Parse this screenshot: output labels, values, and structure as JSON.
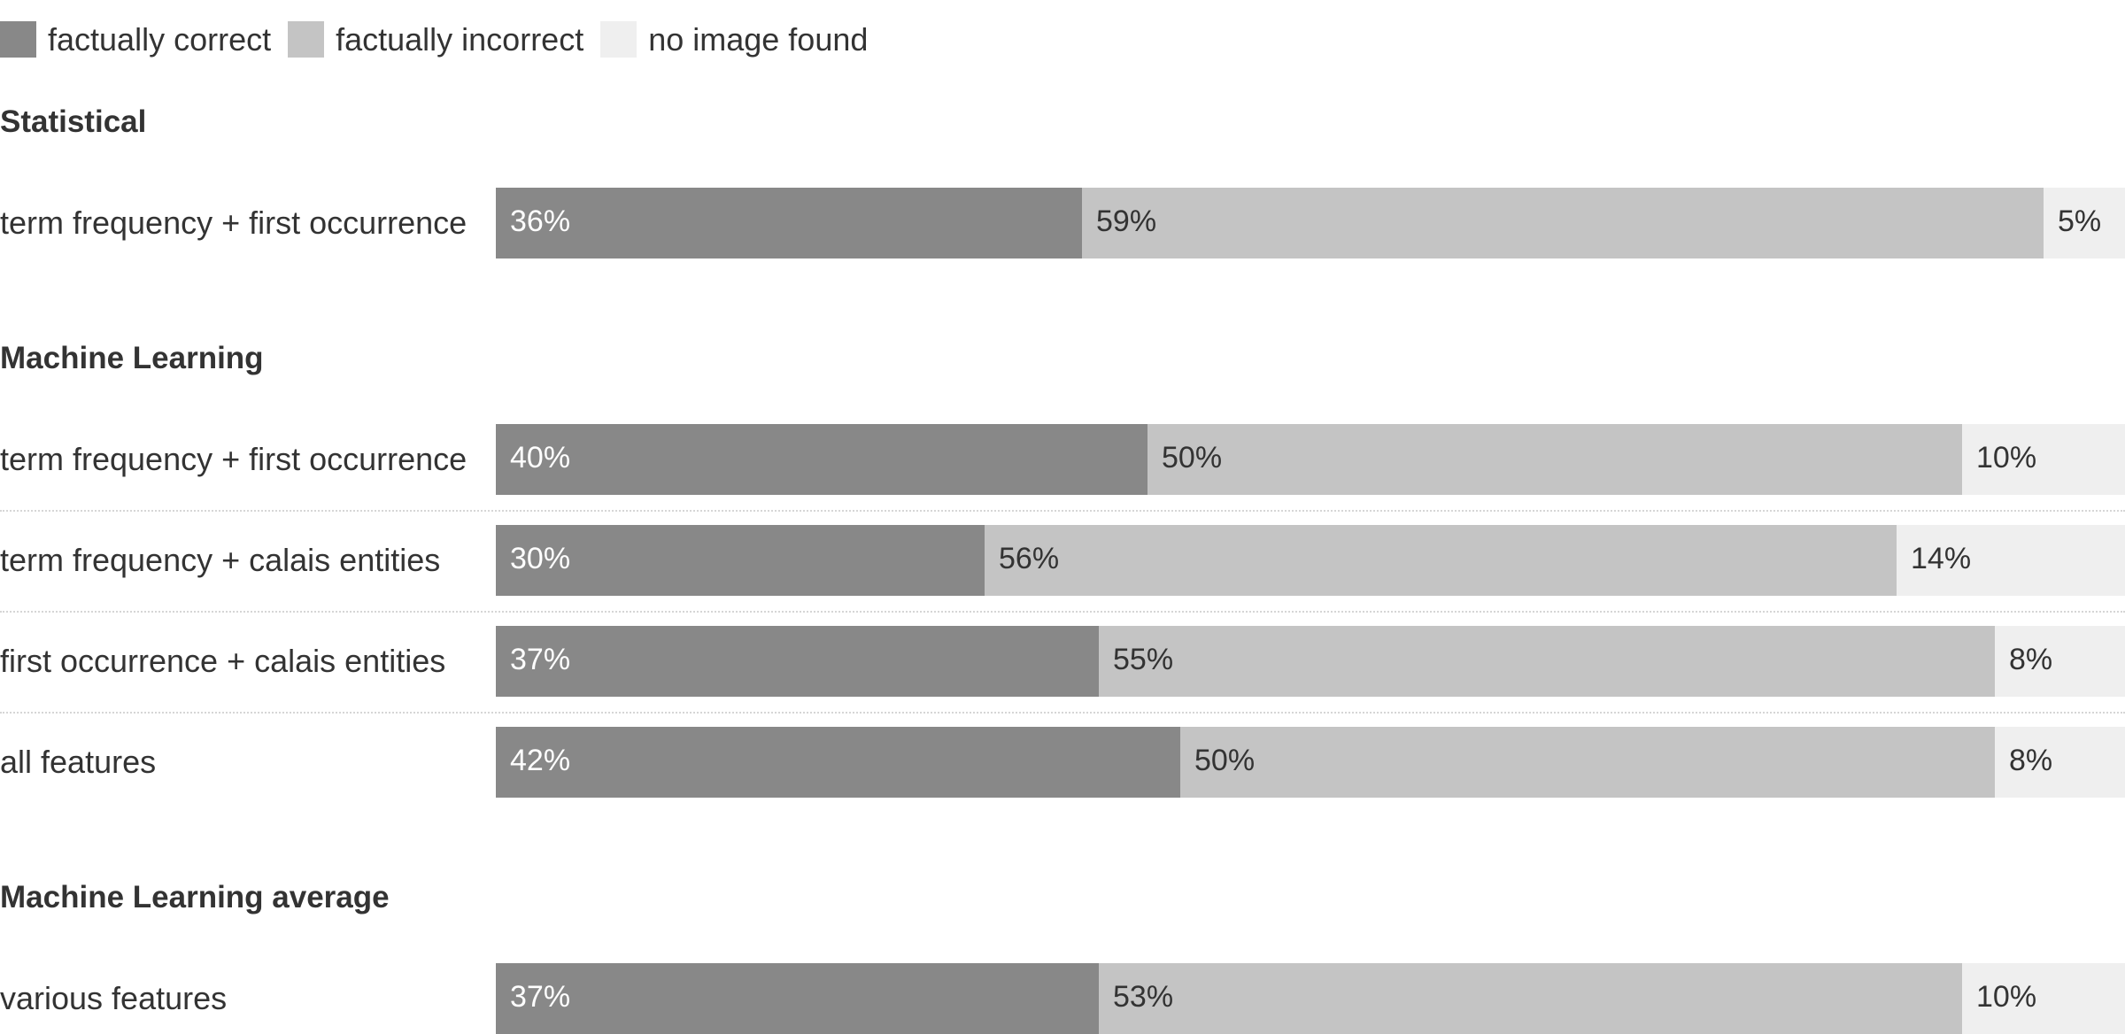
{
  "colors": {
    "correct": "#888888",
    "incorrect": "#c4c4c4",
    "no_image": "#efefef",
    "label_on_dark": "#ffffff",
    "label_on_light": "#333333"
  },
  "legend": [
    {
      "label": "factually correct",
      "color": "#888888"
    },
    {
      "label": "factually incorrect",
      "color": "#c4c4c4"
    },
    {
      "label": "no image found",
      "color": "#efefef"
    }
  ],
  "chart_data": {
    "type": "bar",
    "orientation": "horizontal",
    "stacked": true,
    "normalized": true,
    "legend_position": "top-left",
    "series_names": [
      "factually correct",
      "factually incorrect",
      "no image found"
    ],
    "groups": [
      {
        "title": "Statistical",
        "rows": [
          {
            "label": "term frequency + first occurrence",
            "values": [
              36,
              59,
              5
            ],
            "value_labels": [
              "36%",
              "59%",
              "5%"
            ]
          }
        ]
      },
      {
        "title": "Machine Learning",
        "rows": [
          {
            "label": "term frequency + first occurrence",
            "values": [
              40,
              50,
              10
            ],
            "value_labels": [
              "40%",
              "50%",
              "10%"
            ]
          },
          {
            "label": "term frequency + calais entities",
            "values": [
              30,
              56,
              14
            ],
            "value_labels": [
              "30%",
              "56%",
              "14%"
            ]
          },
          {
            "label": "first occurrence + calais entities",
            "values": [
              37,
              55,
              8
            ],
            "value_labels": [
              "37%",
              "55%",
              "8%"
            ]
          },
          {
            "label": "all features",
            "values": [
              42,
              50,
              8
            ],
            "value_labels": [
              "42%",
              "50%",
              "8%"
            ]
          }
        ]
      },
      {
        "title": "Machine Learning average",
        "rows": [
          {
            "label": "various features",
            "values": [
              37,
              53,
              10
            ],
            "value_labels": [
              "37%",
              "53%",
              "10%"
            ]
          }
        ]
      }
    ]
  }
}
